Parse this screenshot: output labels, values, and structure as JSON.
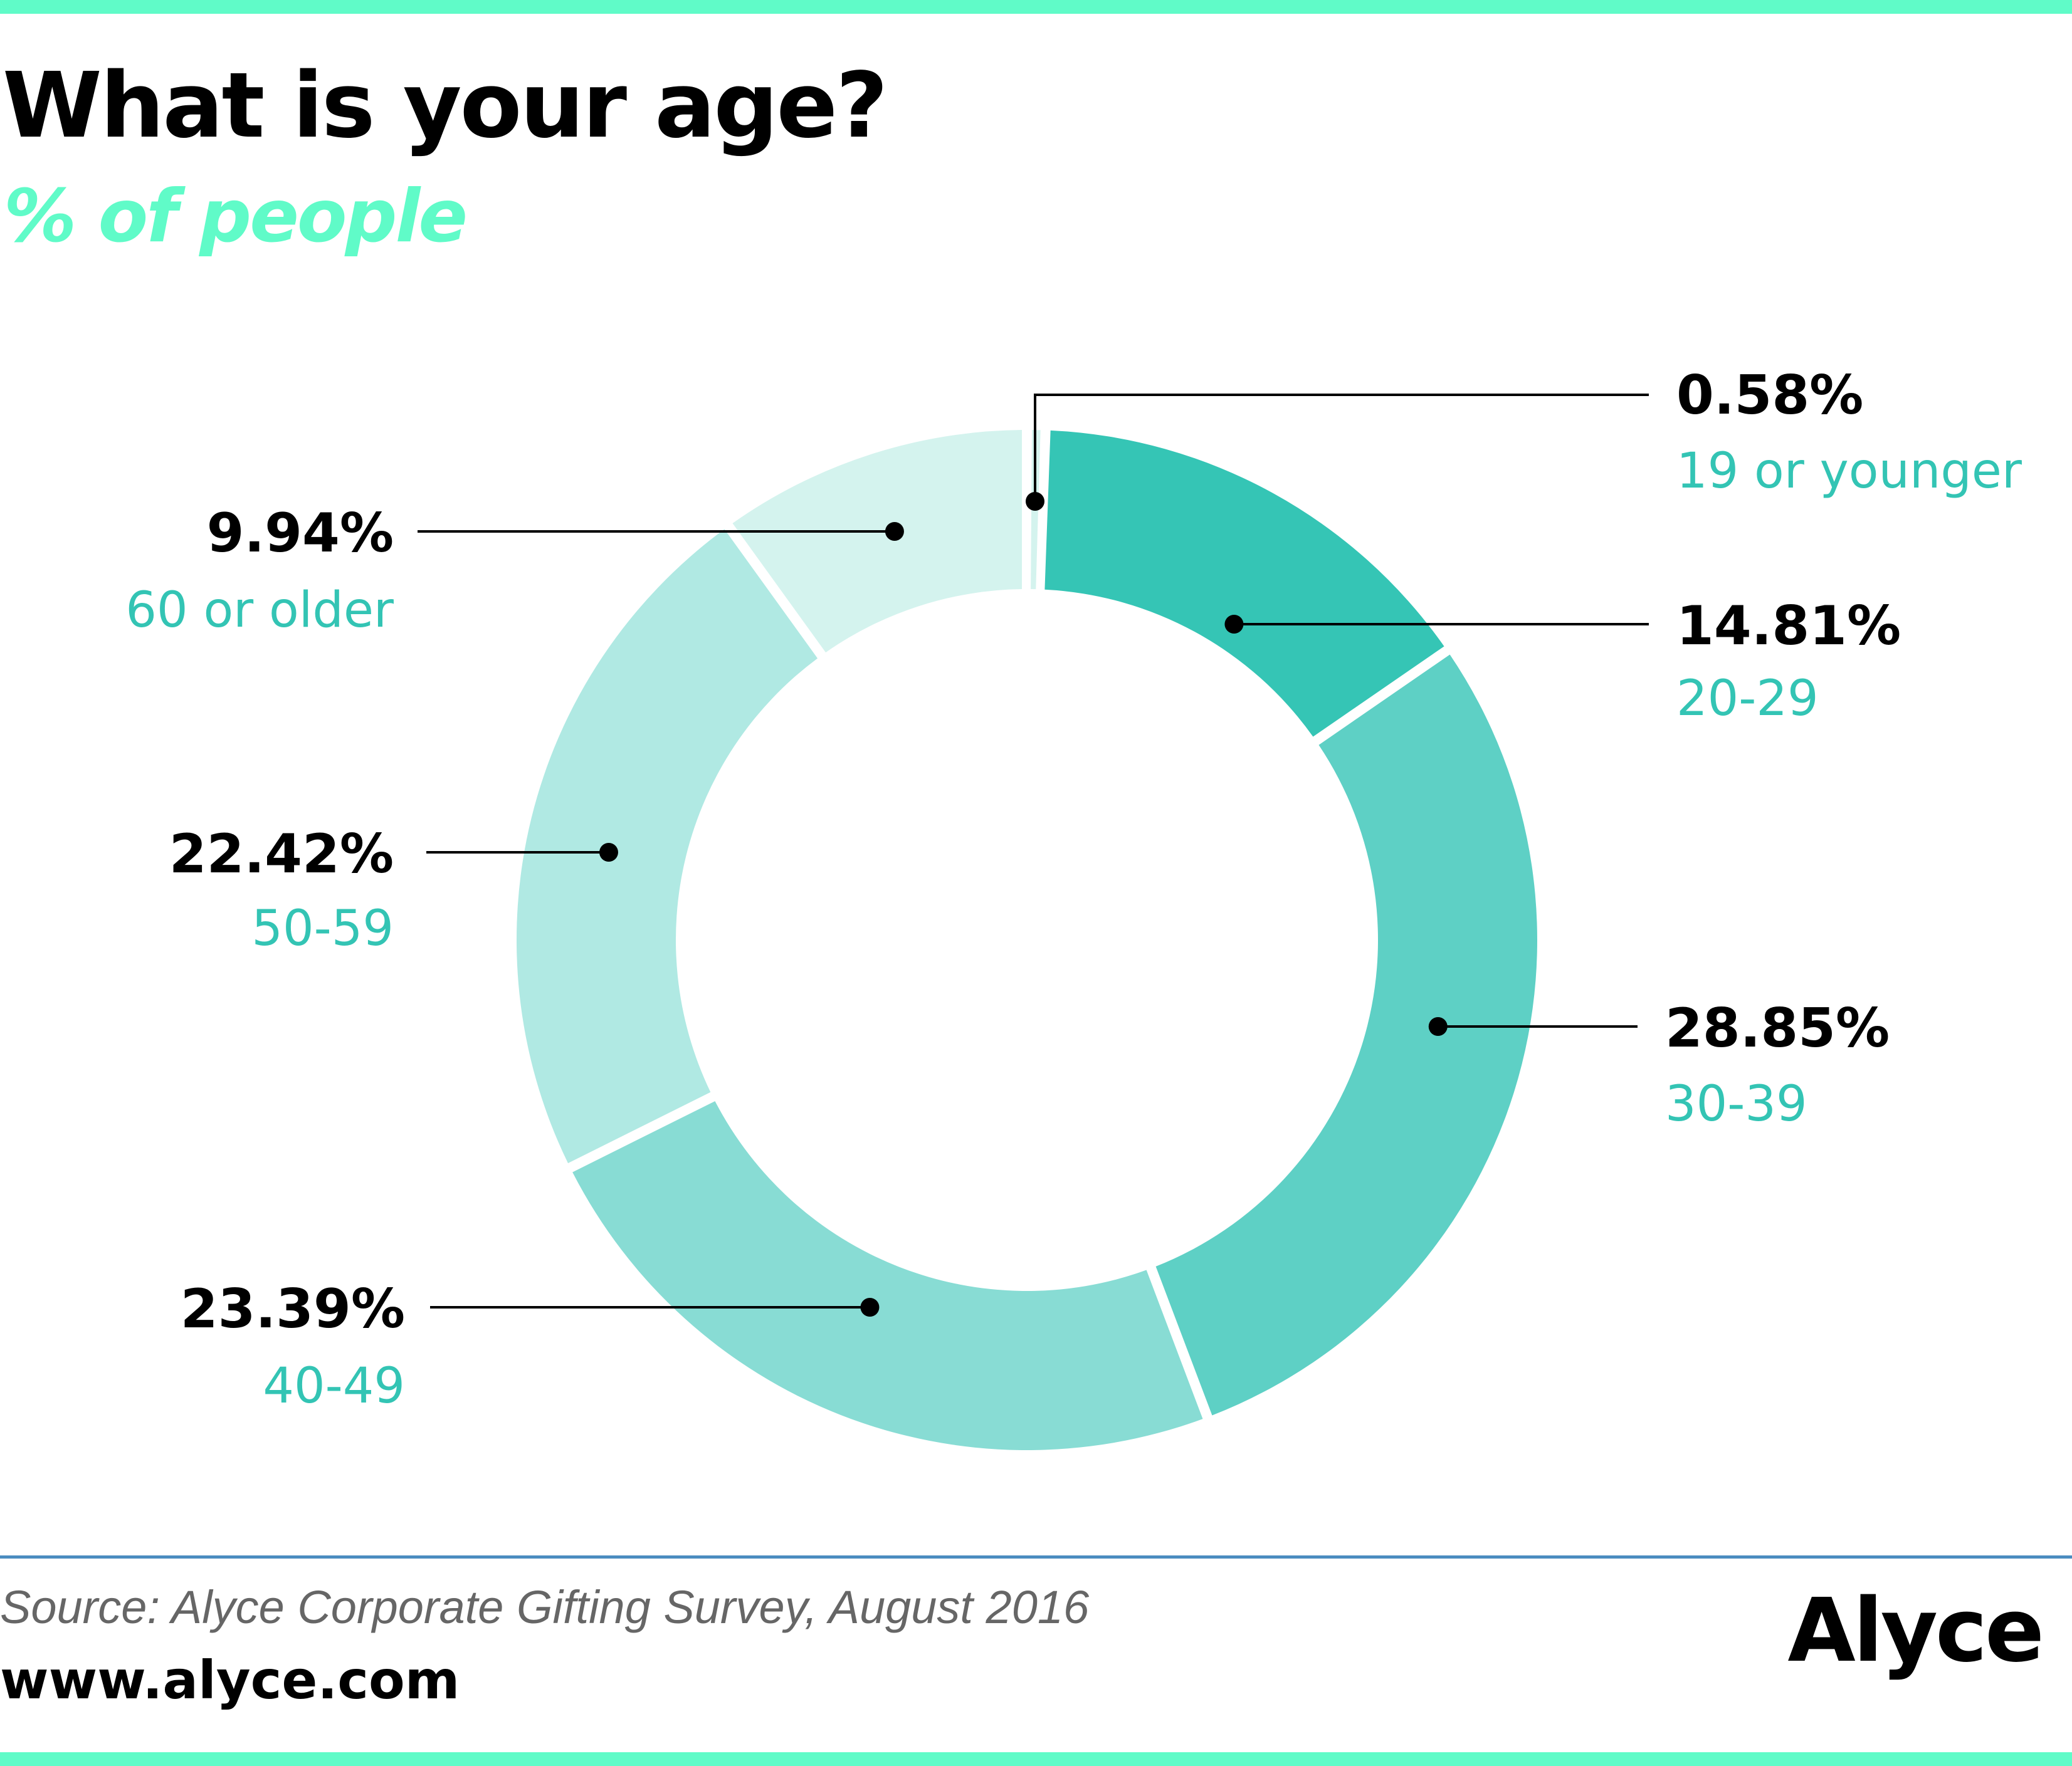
{
  "header": {
    "title": "What is your age?",
    "subtitle": "% of people"
  },
  "chart_data": {
    "type": "pie",
    "variant": "donut",
    "title": "What is your age?",
    "subtitle": "% of people",
    "unit": "%",
    "slices": [
      {
        "label": "19 or younger",
        "value": 0.58,
        "display": "0.58%",
        "color": "#d4f3ee",
        "label_side": "right"
      },
      {
        "label": "20-29",
        "value": 14.81,
        "display": "14.81%",
        "color": "#35c5b5",
        "label_side": "right"
      },
      {
        "label": "30-39",
        "value": 28.85,
        "display": "28.85%",
        "color": "#5ed0c5",
        "label_side": "right"
      },
      {
        "label": "40-49",
        "value": 23.39,
        "display": "23.39%",
        "color": "#88dcd4",
        "label_side": "left"
      },
      {
        "label": "50-59",
        "value": 22.42,
        "display": "22.42%",
        "color": "#b0e9e3",
        "label_side": "left"
      },
      {
        "label": "60 or older",
        "value": 9.94,
        "display": "9.94%",
        "color": "#d4f3ee",
        "label_side": "left"
      }
    ],
    "value_label_color": "#000000",
    "category_label_color": "#33c4b4"
  },
  "footer": {
    "source": "Source: Alyce Corporate Gifting Survey, August 2016",
    "website": "www.alyce.com",
    "brand": "Alyce"
  },
  "colors": {
    "accent_bar": "#60fbc8",
    "rule": "#4a8cc0"
  }
}
